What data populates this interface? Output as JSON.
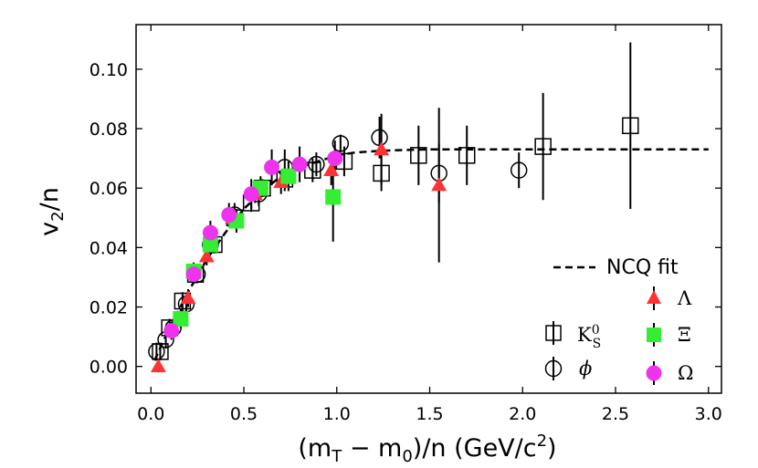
{
  "chart_data": {
    "type": "scatter",
    "title": "",
    "xlabel": "(m_T − m_0)/n (GeV/c^2)",
    "xlabel_parts": {
      "open": "(m",
      "sub1": "T",
      "minus": " − m",
      "sub2": "0",
      "mid": ")/n (GeV/c",
      "sup": "2",
      "close": ")"
    },
    "ylabel": "v_2/n",
    "ylabel_parts": {
      "v": "v",
      "sub": "2",
      "rest": "/n"
    },
    "xlim": [
      -0.08,
      3.07
    ],
    "ylim": [
      -0.009,
      0.115
    ],
    "xticks": [
      0.0,
      0.5,
      1.0,
      1.5,
      2.0,
      2.5,
      3.0
    ],
    "xtick_labels": [
      "0.0",
      "0.5",
      "1.0",
      "1.5",
      "2.0",
      "2.5",
      "3.0"
    ],
    "yticks": [
      0.0,
      0.02,
      0.04,
      0.06,
      0.08,
      0.1
    ],
    "ytick_labels": [
      "0.00",
      "0.02",
      "0.04",
      "0.06",
      "0.08",
      "0.10"
    ],
    "legend_position": "bottom-right",
    "fit": {
      "name": "NCQ fit",
      "label": "NCQ fit",
      "style": "dashed",
      "color": "#000000",
      "x": [
        0.02,
        0.1,
        0.2,
        0.3,
        0.4,
        0.5,
        0.6,
        0.7,
        0.8,
        0.9,
        1.0,
        1.1,
        1.2,
        1.3,
        1.4,
        1.5,
        1.75,
        2.0,
        2.5,
        3.0
      ],
      "y": [
        0.002,
        0.013,
        0.025,
        0.036,
        0.045,
        0.053,
        0.059,
        0.064,
        0.067,
        0.069,
        0.071,
        0.072,
        0.0724,
        0.0727,
        0.0729,
        0.073,
        0.073,
        0.073,
        0.073,
        0.073
      ]
    },
    "series": [
      {
        "name": "K0S",
        "legend_label": "K",
        "legend_sup": "0",
        "legend_sub": "S",
        "marker": "square-open",
        "color": "#000000",
        "x": [
          0.05,
          0.1,
          0.17,
          0.24,
          0.34,
          0.45,
          0.54,
          0.6,
          0.72,
          0.87,
          1.04,
          1.24,
          1.44,
          1.7,
          2.11,
          2.58
        ],
        "y": [
          0.005,
          0.013,
          0.022,
          0.031,
          0.041,
          0.05,
          0.055,
          0.06,
          0.063,
          0.066,
          0.069,
          0.065,
          0.071,
          0.071,
          0.074,
          0.081
        ],
        "err": [
          0.003,
          0.003,
          0.003,
          0.003,
          0.003,
          0.003,
          0.003,
          0.003,
          0.004,
          0.004,
          0.005,
          0.006,
          0.01,
          0.01,
          0.018,
          0.028
        ]
      },
      {
        "name": "phi",
        "legend_label": "ϕ",
        "marker": "circle-open",
        "color": "#000000",
        "x": [
          0.03,
          0.08,
          0.12,
          0.19,
          0.25,
          0.32,
          0.45,
          0.58,
          0.72,
          0.89,
          1.02,
          1.23,
          1.55,
          1.98
        ],
        "y": [
          0.005,
          0.009,
          0.013,
          0.021,
          0.031,
          0.041,
          0.051,
          0.058,
          0.067,
          0.068,
          0.075,
          0.077,
          0.065,
          0.066
        ],
        "err": [
          0.003,
          0.003,
          0.003,
          0.003,
          0.003,
          0.003,
          0.004,
          0.004,
          0.006,
          0.004,
          0.003,
          0.007,
          0.01,
          0.006
        ]
      },
      {
        "name": "Lambda",
        "legend_label": "Λ",
        "marker": "triangle",
        "color": "#ff3333",
        "x": [
          0.04,
          0.2,
          0.3,
          0.44,
          0.56,
          0.7,
          0.97,
          1.24,
          1.55
        ],
        "y": [
          0.0,
          0.023,
          0.037,
          0.05,
          0.058,
          0.062,
          0.066,
          0.073,
          0.061
        ],
        "err": [
          0.002,
          0.003,
          0.003,
          0.003,
          0.003,
          0.004,
          0.005,
          0.012,
          0.026
        ]
      },
      {
        "name": "Xi",
        "legend_label": "Ξ",
        "marker": "square",
        "color": "#33ee33",
        "x": [
          0.16,
          0.23,
          0.32,
          0.46,
          0.59,
          0.74,
          0.98
        ],
        "y": [
          0.016,
          0.032,
          0.041,
          0.049,
          0.06,
          0.064,
          0.057
        ],
        "err": [
          0.003,
          0.003,
          0.003,
          0.004,
          0.004,
          0.005,
          0.015
        ]
      },
      {
        "name": "Omega",
        "legend_label": "Ω",
        "marker": "circle",
        "color": "#ee33ee",
        "x": [
          0.11,
          0.23,
          0.32,
          0.42,
          0.54,
          0.65,
          0.8,
          0.99
        ],
        "y": [
          0.012,
          0.031,
          0.045,
          0.051,
          0.058,
          0.067,
          0.068,
          0.07
        ],
        "err": [
          0.003,
          0.003,
          0.004,
          0.004,
          0.005,
          0.006,
          0.006,
          0.006
        ]
      }
    ]
  }
}
